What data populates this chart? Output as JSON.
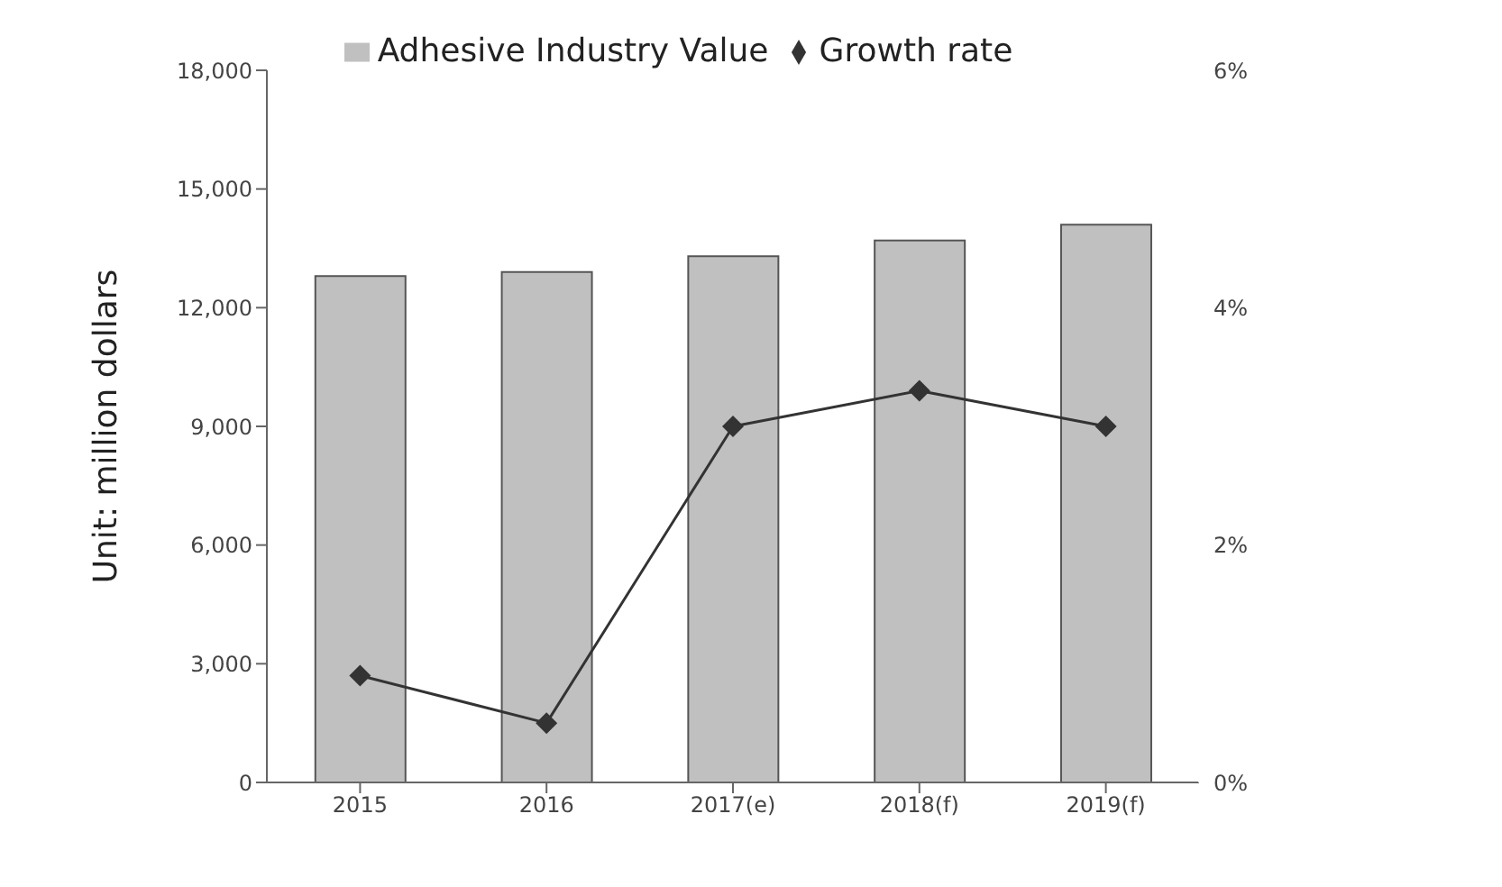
{
  "chart_data": {
    "type": "bar",
    "ylabel": "Unit: million dollars",
    "categories": [
      "2015",
      "2016",
      "2017(e)",
      "2018(f)",
      "2019(f)"
    ],
    "series": [
      {
        "name": "Adhesive Industry Value",
        "color": "#c0c0c0",
        "values": [
          12800,
          12900,
          13300,
          13700,
          14100
        ]
      },
      {
        "name": "Growth rate",
        "type": "line",
        "axis": "y2",
        "color": "#333333",
        "marker": "diamond",
        "values": [
          0.9,
          0.5,
          3.0,
          3.3,
          3.0
        ]
      }
    ],
    "ylim": [
      0,
      18000
    ],
    "yticks": [
      {
        "value": 0,
        "label": "0"
      },
      {
        "value": 3000,
        "label": "3,000"
      },
      {
        "value": 6000,
        "label": "6,000"
      },
      {
        "value": 9000,
        "label": "9,000"
      },
      {
        "value": 12000,
        "label": "12,000"
      },
      {
        "value": 15000,
        "label": "15,000"
      },
      {
        "value": 18000,
        "label": "18,000"
      }
    ],
    "y2lim": [
      0,
      6
    ],
    "y2ticks": [
      {
        "value": 0,
        "label": "0%"
      },
      {
        "value": 2,
        "label": "2%"
      },
      {
        "value": 4,
        "label": "4%"
      },
      {
        "value": 6,
        "label": "6%"
      }
    ],
    "legend": "top",
    "grid": false
  }
}
